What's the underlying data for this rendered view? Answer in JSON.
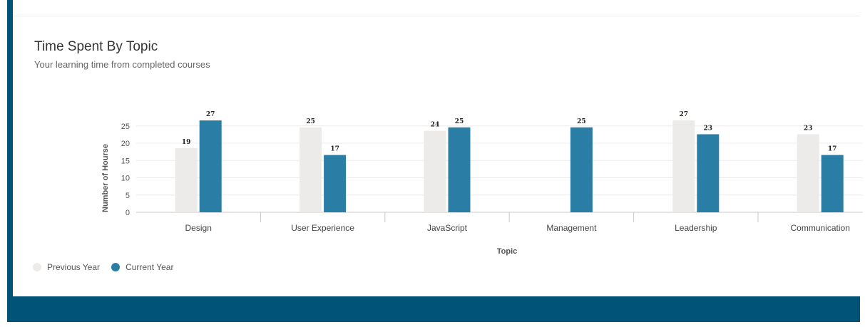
{
  "header": {
    "title": "Time Spent By Topic",
    "subtitle": "Your learning time from completed courses"
  },
  "colors": {
    "accent": "#015477",
    "previous": "#ecebe9",
    "current": "#2a7ea6"
  },
  "chart_data": {
    "type": "bar",
    "categories": [
      "Design ",
      "User Experience",
      "JavaScript",
      "Management",
      "Leadership",
      "Communication"
    ],
    "series": [
      {
        "name": "Previous Year",
        "values": [
          19,
          25,
          24,
          null,
          27,
          23
        ]
      },
      {
        "name": "Current Year",
        "values": [
          27,
          17,
          25,
          25,
          23,
          17
        ]
      }
    ],
    "data_labels": [
      [
        "19",
        "25",
        "24",
        "",
        "27",
        "23"
      ],
      [
        "27",
        "17",
        "25",
        "25",
        "23",
        "17"
      ]
    ],
    "xlabel": "Topic",
    "ylabel": "Number of Hourse",
    "y_ticks": [
      0,
      5,
      10,
      15,
      20,
      25
    ],
    "ylim": [
      0,
      30
    ],
    "grid": true,
    "legend": "bottom-left"
  }
}
